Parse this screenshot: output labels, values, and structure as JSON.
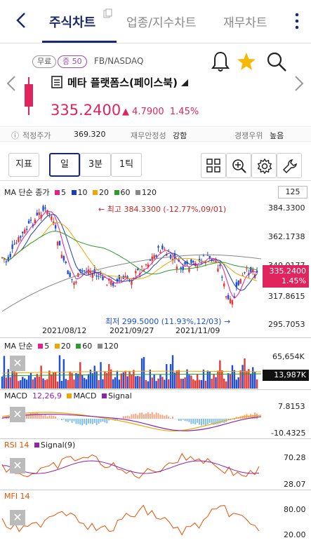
{
  "nav": {
    "tabs": [
      {
        "label": "주식차트",
        "active": true
      },
      {
        "label": "업종/지수차트",
        "active": false
      },
      {
        "label": "재무차트",
        "active": false
      }
    ]
  },
  "stock": {
    "badges": [
      "무료",
      "증 50"
    ],
    "exchange": "FB/NASDAQ",
    "name": "메타 플랫폼스(페이스북)",
    "price": "335.2400",
    "change": "4.7900",
    "change_pct": "1.45%",
    "fair_value_label": "적정주가",
    "fair_value": "369.320",
    "fin_stability_label": "재무안정성",
    "fin_stability": "강함",
    "competition_label": "경쟁우위",
    "competition": "높음"
  },
  "toolbar": {
    "indicator": "지표",
    "period_day": "일",
    "period_3min": "3분",
    "period_1tick": "1틱",
    "count": "125"
  },
  "price_panel": {
    "legend_title": "MA 단순 종가",
    "legend": [
      {
        "name": "5",
        "color": "#e91e8c"
      },
      {
        "name": "10",
        "color": "#1a3fb5"
      },
      {
        "name": "20",
        "color": "#f0a500"
      },
      {
        "name": "60",
        "color": "#2a9d2a"
      },
      {
        "name": "120",
        "color": "#888888"
      }
    ],
    "y_ticks": [
      "384.3300",
      "362.1738",
      "340.0177",
      "317.8615",
      "295.7053"
    ],
    "dates": [
      "2021/08/12",
      "2021/09/27",
      "2021/11/09"
    ],
    "high_annotation": "← 최고 384.3300 (-12.77%,09/01)",
    "low_annotation": "최저 299.5000 (11.93%,12/03) →",
    "last_price": "335.2400",
    "last_pct": "1.45%"
  },
  "volume_panel": {
    "legend_title": "MA 단순",
    "legend": [
      {
        "name": "5",
        "color": "#e91e8c"
      },
      {
        "name": "20",
        "color": "#f0a500"
      },
      {
        "name": "60",
        "color": "#2a9d2a"
      },
      {
        "name": "120",
        "color": "#888888"
      }
    ],
    "top": "65,654K",
    "last": "13,987K"
  },
  "macd_panel": {
    "title": "MACD",
    "params": "12,26,9",
    "legend": [
      {
        "name": "MACD",
        "color": "#f0a500"
      },
      {
        "name": "Signal",
        "color": "#8e24aa"
      }
    ],
    "top": "7.8153",
    "bottom": "-10.4325"
  },
  "rsi_panel": {
    "title": "RSI 14",
    "legend": [
      {
        "name": "Signal(9)",
        "color": "#8e24aa"
      }
    ],
    "top": "70.28",
    "bottom": "28.07"
  },
  "mfi_panel": {
    "title": "MFI 14",
    "top": "80.00",
    "bottom": "20.00"
  },
  "colors": {
    "up": "#e53935",
    "down": "#1e4fd8",
    "accent": "#1b2a6b",
    "price": "#e0245e"
  }
}
